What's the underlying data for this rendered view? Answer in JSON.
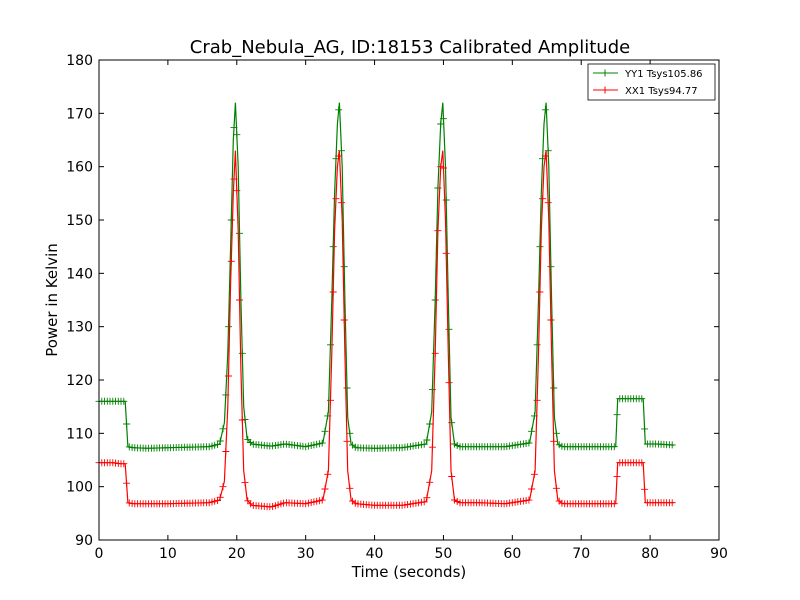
{
  "chart_data": {
    "type": "line",
    "title": "Crab_Nebula_AG, ID:18153 Calibrated Amplitude",
    "xlabel": "Time (seconds)",
    "ylabel": "Power in Kelvin",
    "xlim": [
      0,
      90
    ],
    "ylim": [
      90,
      180
    ],
    "xticks": [
      0,
      10,
      20,
      30,
      40,
      50,
      60,
      70,
      80,
      90
    ],
    "yticks": [
      90,
      100,
      110,
      120,
      130,
      140,
      150,
      160,
      170,
      180
    ],
    "grid": false,
    "legend_position": "top-right",
    "marker": "+",
    "series": [
      {
        "name": "YY1 Tsys105.86",
        "color": "#008000",
        "x": [
          0,
          1,
          2,
          3,
          3.8,
          4.2,
          5,
          7,
          10,
          13,
          16,
          17.5,
          18.2,
          18.7,
          19.1,
          19.5,
          19.8,
          20.2,
          20.6,
          21,
          21.5,
          22.2,
          25,
          27,
          30,
          32.5,
          33.3,
          33.8,
          34.2,
          34.6,
          34.9,
          35.3,
          35.7,
          36.1,
          36.6,
          37.3,
          40,
          44,
          47.5,
          48.3,
          48.8,
          49.2,
          49.6,
          49.9,
          50.3,
          50.7,
          51.1,
          51.6,
          52.3,
          55,
          59,
          62.5,
          63.3,
          63.8,
          64.2,
          64.6,
          64.9,
          65.3,
          65.7,
          66.1,
          66.6,
          67.3,
          70,
          73,
          75,
          75.3,
          77,
          79,
          79.3,
          81,
          83.5
        ],
        "y": [
          116,
          116,
          116,
          116,
          116,
          107.5,
          107.3,
          107.2,
          107.3,
          107.4,
          107.5,
          108,
          112,
          125,
          145,
          165,
          172,
          160,
          135,
          115,
          109,
          108,
          107.6,
          108,
          107.5,
          108.2,
          114,
          135,
          155,
          168,
          172,
          160,
          135,
          113,
          108,
          107.3,
          107.2,
          107.3,
          108,
          114,
          135,
          156,
          168,
          172,
          160,
          135,
          113,
          108,
          107.5,
          107.5,
          107.5,
          108.2,
          114,
          135,
          155,
          168,
          172,
          160,
          135,
          113,
          108,
          107.5,
          107.5,
          107.5,
          107.5,
          116.5,
          116.5,
          116.5,
          108,
          108,
          107.8
        ]
      },
      {
        "name": "XX1 Tsys94.77",
        "color": "#ff0000",
        "x": [
          0,
          1,
          2,
          3,
          3.8,
          4.2,
          5,
          7,
          10,
          13,
          16,
          17.5,
          18.2,
          18.7,
          19.1,
          19.5,
          19.8,
          20.2,
          20.6,
          21,
          21.5,
          22.2,
          25,
          27,
          30,
          32.5,
          33.3,
          33.8,
          34.2,
          34.6,
          34.9,
          35.3,
          35.7,
          36.1,
          36.6,
          37.3,
          40,
          44,
          47.5,
          48.3,
          48.8,
          49.2,
          49.6,
          49.9,
          50.3,
          50.7,
          51.1,
          51.6,
          52.3,
          55,
          59,
          62.5,
          63.3,
          63.8,
          64.2,
          64.6,
          64.9,
          65.3,
          65.7,
          66.1,
          66.6,
          67.3,
          70,
          73,
          75,
          75.3,
          77,
          79,
          79.3,
          81,
          83.5
        ],
        "y": [
          104.5,
          104.5,
          104.5,
          104.3,
          104.3,
          97,
          96.8,
          96.8,
          96.8,
          96.9,
          97,
          97.5,
          101,
          115,
          138,
          155,
          163,
          148,
          122,
          103,
          97.5,
          96.5,
          96.2,
          97,
          96.8,
          97.5,
          103,
          125,
          148,
          160,
          163,
          150,
          125,
          103,
          97.5,
          96.8,
          96.5,
          96.5,
          97.2,
          103,
          125,
          148,
          160,
          163,
          150,
          125,
          103,
          97.5,
          97,
          97,
          96.8,
          97.5,
          103,
          125,
          148,
          160,
          163,
          150,
          125,
          103,
          97.5,
          96.8,
          96.8,
          96.8,
          96.8,
          104.5,
          104.5,
          104.5,
          97,
          97,
          97
        ]
      }
    ]
  }
}
